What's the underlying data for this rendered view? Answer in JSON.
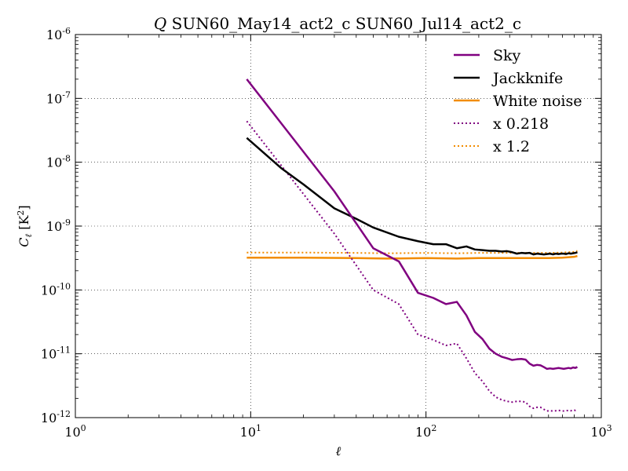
{
  "chart_data": {
    "type": "line",
    "title_prefix": "Q",
    "title": "SUN60_May14_act2_c SUN60_Jul14_act2_c",
    "xlabel": "ℓ",
    "ylabel_symbol": "C",
    "ylabel_sub": "ℓ",
    "ylabel_unit": "[K",
    "ylabel_unit_exp": "2",
    "ylabel_unit_close": "]",
    "xscale": "log",
    "yscale": "log",
    "xlim": [
      1,
      1000
    ],
    "ylim": [
      1e-12,
      1e-06
    ],
    "grid": true,
    "legend_position": "top-right",
    "x_ticks": [
      {
        "value": 1,
        "base": "10",
        "exp": "0"
      },
      {
        "value": 10,
        "base": "10",
        "exp": "1"
      },
      {
        "value": 100,
        "base": "10",
        "exp": "2"
      },
      {
        "value": 1000,
        "base": "10",
        "exp": "3"
      }
    ],
    "y_ticks": [
      {
        "value": 1e-12,
        "base": "10",
        "exp": "-12"
      },
      {
        "value": 1e-11,
        "base": "10",
        "exp": "-11"
      },
      {
        "value": 1e-10,
        "base": "10",
        "exp": "-10"
      },
      {
        "value": 1e-09,
        "base": "10",
        "exp": "-9"
      },
      {
        "value": 1e-08,
        "base": "10",
        "exp": "-8"
      },
      {
        "value": 1e-07,
        "base": "10",
        "exp": "-7"
      },
      {
        "value": 1e-06,
        "base": "10",
        "exp": "-6"
      }
    ],
    "series": [
      {
        "name": "Sky",
        "color": "#800080",
        "style": "solid",
        "x": [
          9.5,
          30,
          50,
          70,
          90,
          110,
          130,
          150,
          170,
          190,
          210,
          230,
          250,
          270,
          290,
          310,
          330,
          350,
          370,
          390,
          410,
          430,
          450,
          470,
          490,
          510,
          530,
          550,
          570,
          590,
          610,
          630,
          650,
          670,
          690,
          710,
          730
        ],
        "y": [
          2e-07,
          3.5e-09,
          4.5e-10,
          2.8e-10,
          9e-11,
          7.5e-11,
          6e-11,
          6.5e-11,
          4e-11,
          2.2e-11,
          1.7e-11,
          1.2e-11,
          1e-11,
          9e-12,
          8.5e-12,
          8e-12,
          8.2e-12,
          8.3e-12,
          8.1e-12,
          7e-12,
          6.5e-12,
          6.7e-12,
          6.6e-12,
          6.2e-12,
          5.8e-12,
          5.9e-12,
          5.8e-12,
          5.9e-12,
          6e-12,
          5.9e-12,
          5.8e-12,
          5.9e-12,
          6e-12,
          5.9e-12,
          6.1e-12,
          6e-12,
          6.2e-12
        ]
      },
      {
        "name": "Jackknife",
        "color": "#000000",
        "style": "solid",
        "x": [
          9.5,
          15,
          20,
          30,
          40,
          50,
          70,
          90,
          110,
          130,
          150,
          170,
          190,
          210,
          230,
          250,
          270,
          290,
          310,
          330,
          350,
          370,
          390,
          410,
          430,
          450,
          470,
          490,
          510,
          530,
          550,
          570,
          590,
          610,
          630,
          650,
          670,
          690,
          710,
          730
        ],
        "y": [
          2.4e-08,
          8e-09,
          4.5e-09,
          1.9e-09,
          1.3e-09,
          9.5e-10,
          6.8e-10,
          5.8e-10,
          5.2e-10,
          5.2e-10,
          4.5e-10,
          4.8e-10,
          4.3e-10,
          4.2e-10,
          4.1e-10,
          4.1e-10,
          4e-10,
          4.05e-10,
          3.9e-10,
          3.7e-10,
          3.8e-10,
          3.75e-10,
          3.8e-10,
          3.6e-10,
          3.7e-10,
          3.65e-10,
          3.6e-10,
          3.65e-10,
          3.7e-10,
          3.6e-10,
          3.7e-10,
          3.65e-10,
          3.7e-10,
          3.7e-10,
          3.65e-10,
          3.75e-10,
          3.7e-10,
          3.75e-10,
          3.8e-10,
          3.9e-10
        ]
      },
      {
        "name": "White noise",
        "color": "#f28c00",
        "style": "solid",
        "x": [
          9.5,
          20,
          40,
          60,
          100,
          150,
          200,
          300,
          400,
          500,
          600,
          700,
          730
        ],
        "y": [
          3.2e-10,
          3.2e-10,
          3.15e-10,
          3.1e-10,
          3.15e-10,
          3.1e-10,
          3.15e-10,
          3.15e-10,
          3.15e-10,
          3.15e-10,
          3.2e-10,
          3.3e-10,
          3.4e-10
        ]
      },
      {
        "name": "x 0.218",
        "color": "#800080",
        "style": "dotted",
        "x": [
          9.5,
          30,
          50,
          70,
          90,
          110,
          130,
          150,
          170,
          190,
          210,
          230,
          250,
          270,
          290,
          310,
          330,
          350,
          370,
          390,
          410,
          430,
          450,
          470,
          490,
          510,
          530,
          550,
          570,
          590,
          610,
          630,
          650,
          670,
          690,
          710,
          730
        ],
        "y": [
          4.4e-08,
          7.6e-10,
          1e-10,
          6e-11,
          2e-11,
          1.65e-11,
          1.35e-11,
          1.45e-11,
          8.5e-12,
          5e-12,
          3.7e-12,
          2.6e-12,
          2.1e-12,
          1.9e-12,
          1.8e-12,
          1.75e-12,
          1.8e-12,
          1.8e-12,
          1.75e-12,
          1.5e-12,
          1.4e-12,
          1.45e-12,
          1.45e-12,
          1.35e-12,
          1.27e-12,
          1.28e-12,
          1.27e-12,
          1.28e-12,
          1.3e-12,
          1.28e-12,
          1.27e-12,
          1.28e-12,
          1.3e-12,
          1.28e-12,
          1.32e-12,
          1.3e-12,
          1.35e-12
        ]
      },
      {
        "name": "x 1.2",
        "color": "#f28c00",
        "style": "dotted",
        "x": [
          9.5,
          20,
          40,
          60,
          100,
          150,
          200,
          300,
          400,
          500,
          600,
          700,
          730
        ],
        "y": [
          3.85e-10,
          3.85e-10,
          3.8e-10,
          3.75e-10,
          3.8e-10,
          3.75e-10,
          3.8e-10,
          3.8e-10,
          3.8e-10,
          3.8e-10,
          3.85e-10,
          3.95e-10,
          4.1e-10
        ]
      }
    ]
  }
}
